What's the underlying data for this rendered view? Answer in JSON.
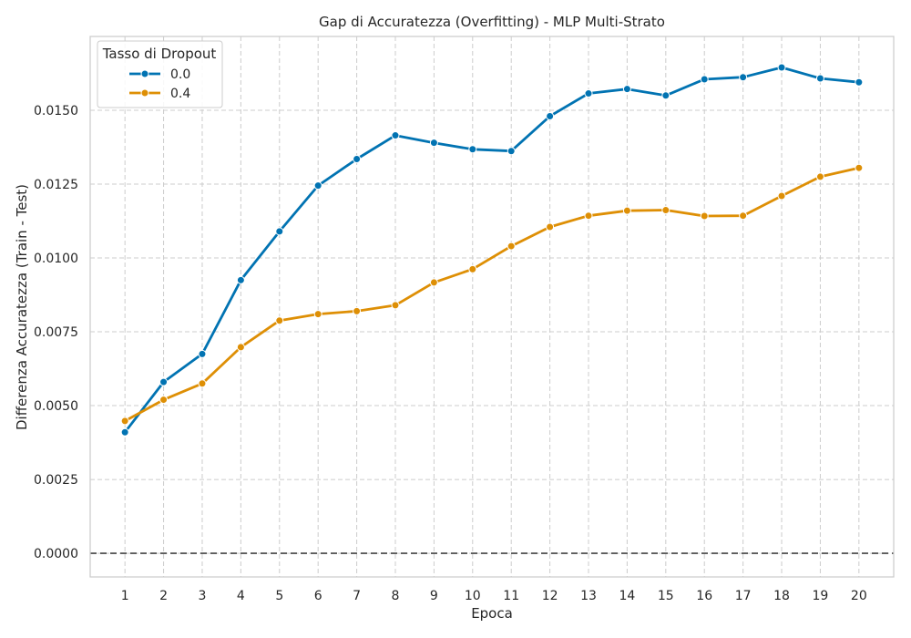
{
  "chart_data": {
    "type": "line",
    "title": "Gap di Accuratezza (Overfitting) - MLP Multi-Strato",
    "xlabel": "Epoca",
    "ylabel": "Differenza Accuratezza (Train - Test)",
    "x": [
      1,
      2,
      3,
      4,
      5,
      6,
      7,
      8,
      9,
      10,
      11,
      12,
      13,
      14,
      15,
      16,
      17,
      18,
      19,
      20
    ],
    "xlim": [
      0.1,
      20.9
    ],
    "ylim": [
      -0.0008,
      0.0175
    ],
    "yticks": [
      0.0,
      0.0025,
      0.005,
      0.0075,
      0.01,
      0.0125,
      0.015
    ],
    "ytick_labels": [
      "0.0000",
      "0.0025",
      "0.0050",
      "0.0075",
      "0.0100",
      "0.0125",
      "0.0150"
    ],
    "reference_line": {
      "y": 0,
      "style": "dashed",
      "color": "#444444"
    },
    "grid": true,
    "legend": {
      "title": "Tasso di Dropout",
      "position": "top-left"
    },
    "series": [
      {
        "name": "0.0",
        "color": "#0173b2",
        "values": [
          0.0041,
          0.0058,
          0.00675,
          0.00925,
          0.0109,
          0.01245,
          0.01335,
          0.01415,
          0.0139,
          0.01368,
          0.01362,
          0.0148,
          0.01557,
          0.01572,
          0.0155,
          0.01605,
          0.01612,
          0.01645,
          0.01608,
          0.01595
        ]
      },
      {
        "name": "0.4",
        "color": "#de8f05",
        "values": [
          0.00448,
          0.0052,
          0.00575,
          0.00698,
          0.00788,
          0.0081,
          0.0082,
          0.0084,
          0.00917,
          0.00962,
          0.0104,
          0.01105,
          0.01143,
          0.0116,
          0.01162,
          0.01142,
          0.01143,
          0.0121,
          0.01275,
          0.01305
        ]
      }
    ]
  }
}
